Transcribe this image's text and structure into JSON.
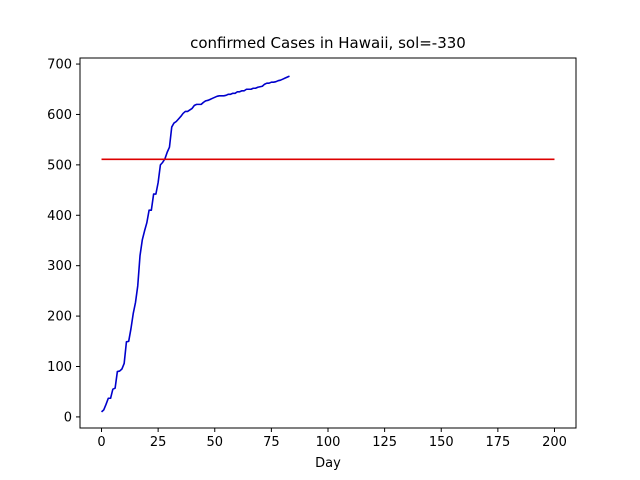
{
  "chart_data": {
    "type": "line",
    "title": "confirmed Cases in Hawaii, sol=-330",
    "xlabel": "Day",
    "ylabel": "",
    "xlim": [
      -9.5,
      209.5
    ],
    "ylim": [
      -22,
      712
    ],
    "x_ticks": [
      0,
      25,
      50,
      75,
      100,
      125,
      150,
      175,
      200
    ],
    "y_ticks": [
      0,
      100,
      200,
      300,
      400,
      500,
      600,
      700
    ],
    "grid": false,
    "series": [
      {
        "color": "#0000cc",
        "x": [
          0,
          1,
          2,
          3,
          4,
          5,
          6,
          7,
          8,
          9,
          10,
          11,
          12,
          13,
          14,
          15,
          16,
          17,
          18,
          19,
          20,
          21,
          22,
          23,
          24,
          25,
          26,
          27,
          28,
          29,
          30,
          31,
          32,
          33,
          34,
          35,
          36,
          37,
          38,
          39,
          40,
          41,
          42,
          43,
          44,
          45,
          46,
          47,
          48,
          49,
          50,
          51,
          52,
          53,
          54,
          55,
          56,
          57,
          58,
          59,
          60,
          61,
          62,
          63,
          64,
          65,
          66,
          67,
          68,
          69,
          70,
          71,
          72,
          73,
          74,
          75,
          76,
          77,
          78,
          79,
          80,
          81,
          82,
          83
        ],
        "values": [
          10,
          14,
          25,
          37,
          37,
          55,
          57,
          90,
          91,
          95,
          106,
          149,
          150,
          175,
          205,
          227,
          260,
          320,
          351,
          369,
          385,
          410,
          410,
          442,
          442,
          465,
          500,
          505,
          512,
          525,
          535,
          575,
          583,
          586,
          591,
          596,
          602,
          606,
          606,
          609,
          612,
          618,
          620,
          620,
          620,
          624,
          627,
          628,
          630,
          632,
          634,
          636,
          637,
          637,
          637,
          638,
          640,
          640,
          642,
          642,
          645,
          645,
          647,
          647,
          650,
          650,
          650,
          652,
          652,
          654,
          655,
          656,
          660,
          662,
          662,
          664,
          664,
          665,
          667,
          668,
          670,
          672,
          674,
          676
        ]
      },
      {
        "color": "#dd0000",
        "x": [
          0,
          200
        ],
        "values": [
          511,
          511
        ]
      }
    ]
  }
}
